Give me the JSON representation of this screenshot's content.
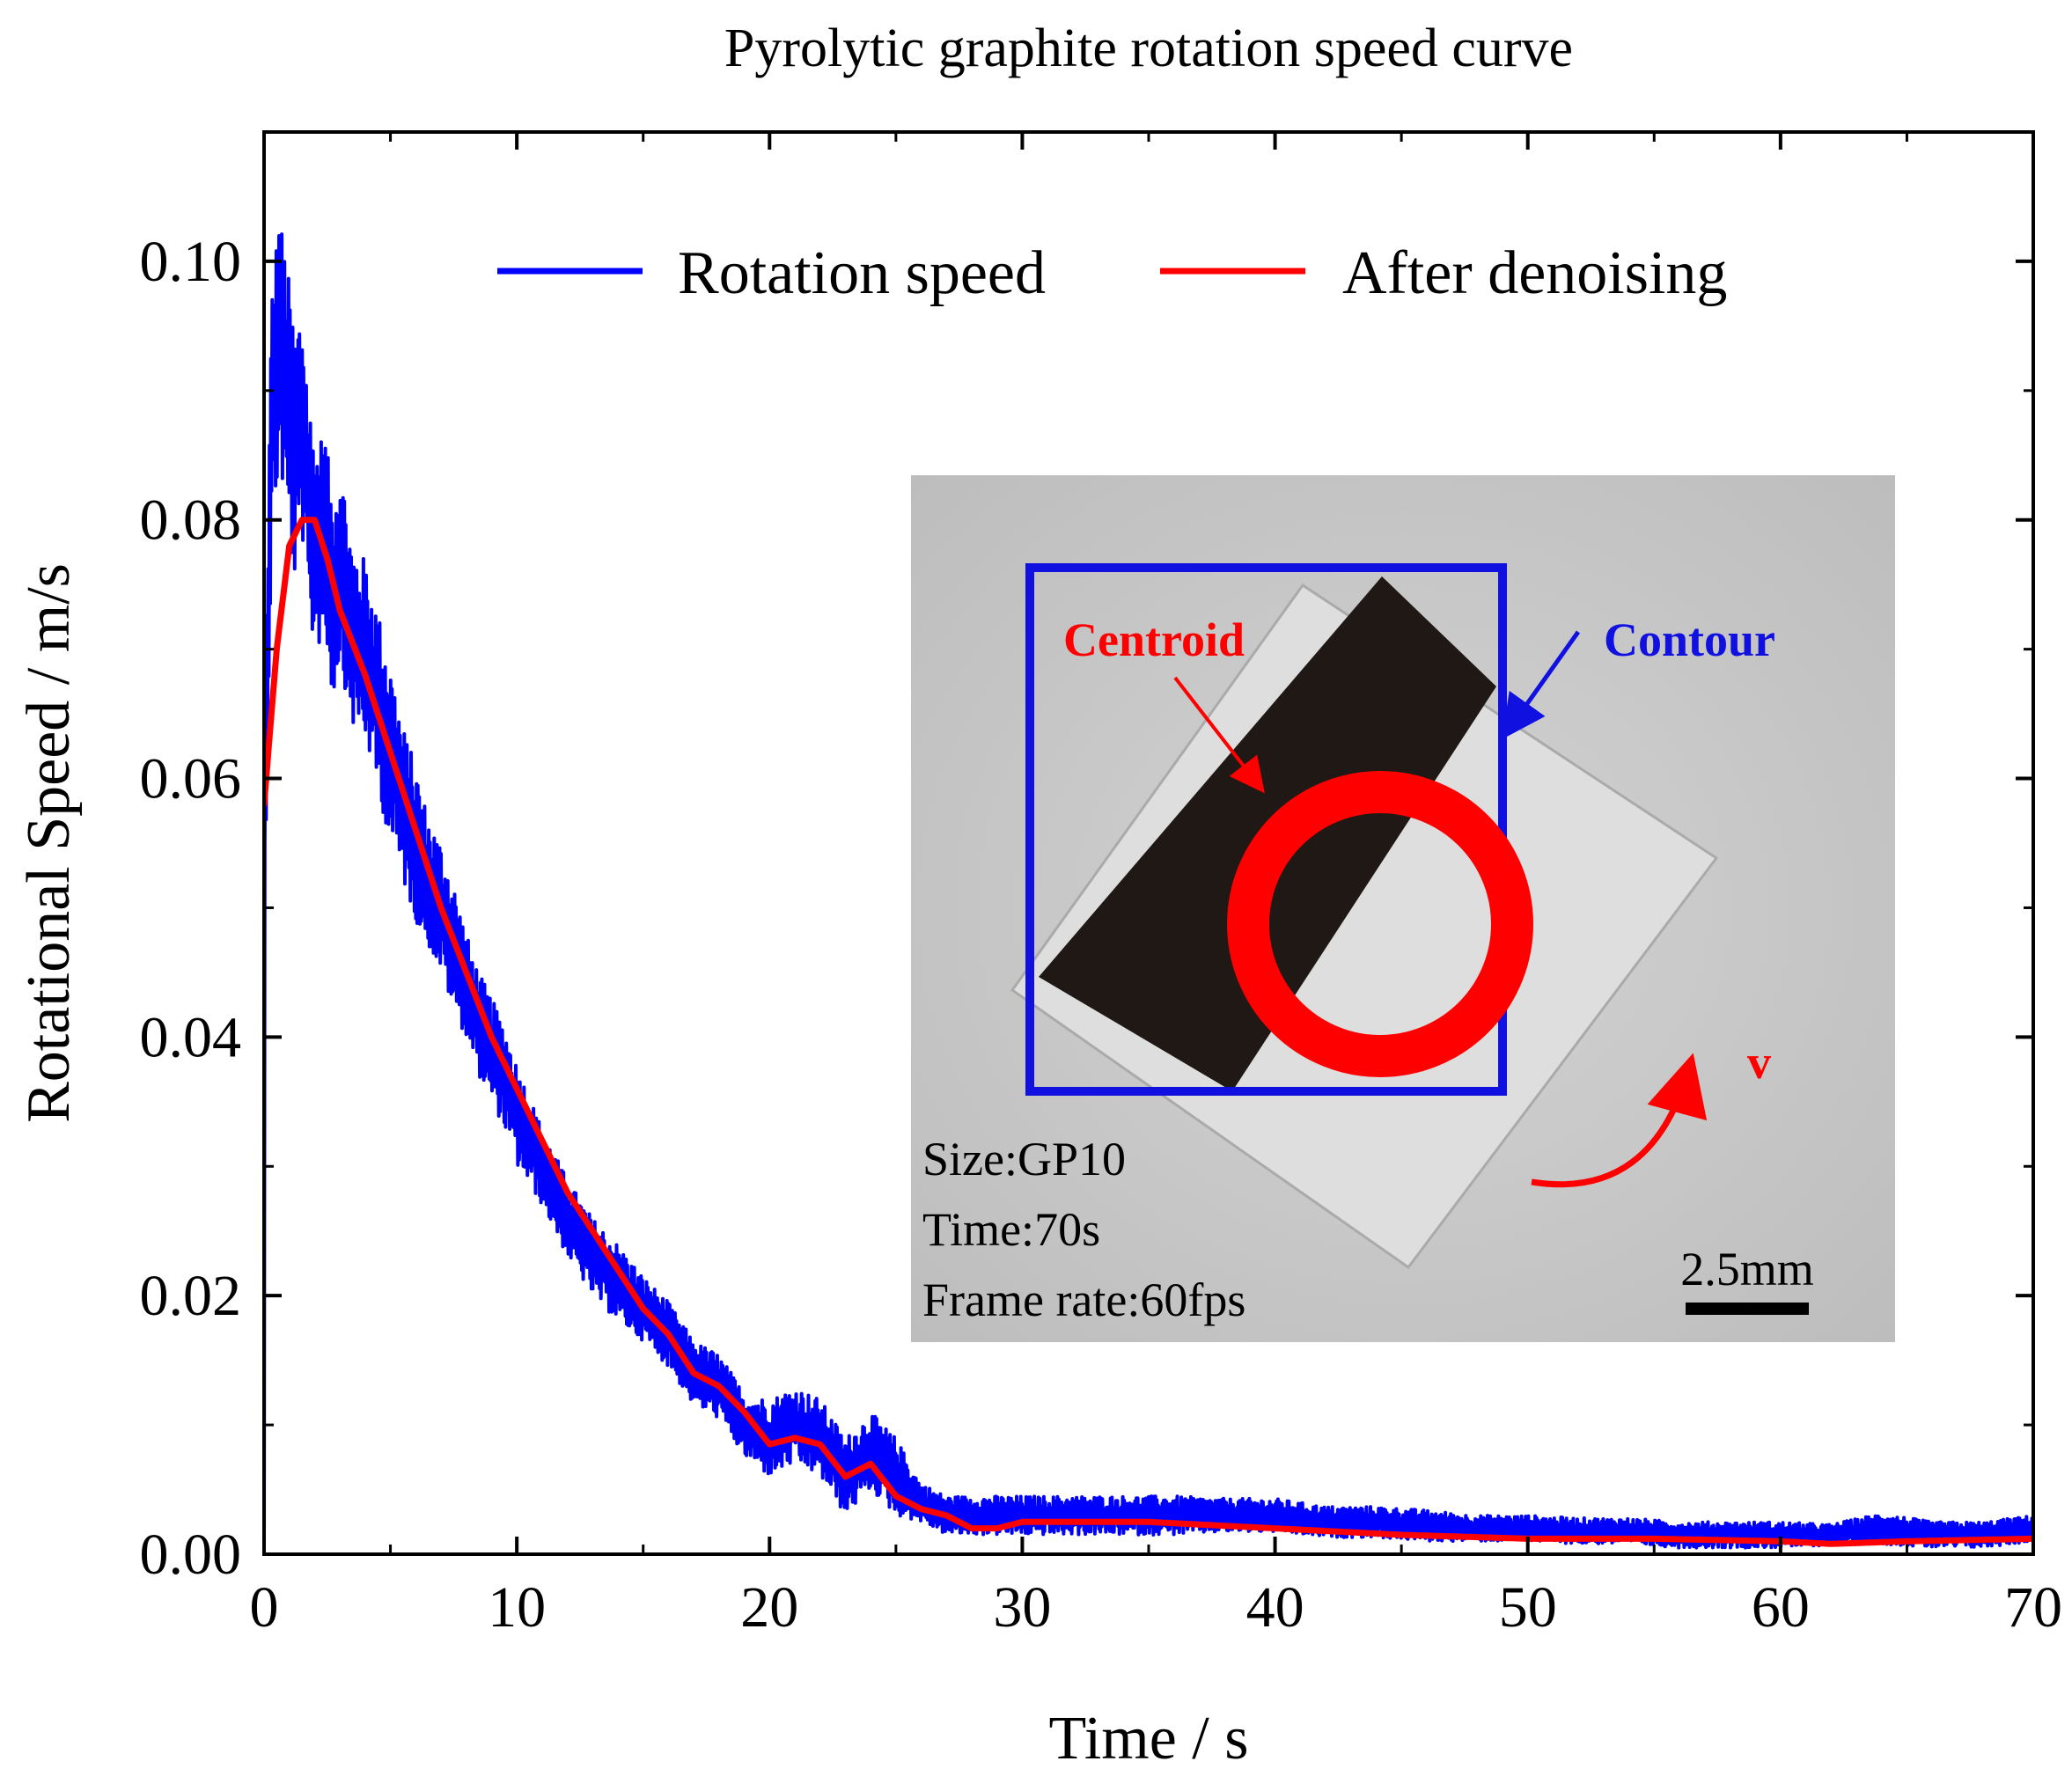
{
  "chart_data": {
    "type": "line",
    "title": "Pyrolytic graphite rotation speed curve",
    "xlabel": "Time / s",
    "ylabel": "Rotational Speed / m/s",
    "xlim": [
      0,
      70
    ],
    "ylim": [
      0,
      0.11
    ],
    "x_ticks": [
      0,
      10,
      20,
      30,
      40,
      50,
      60,
      70
    ],
    "x_tick_labels": [
      "0",
      "10",
      "20",
      "30",
      "40",
      "50",
      "60",
      "70"
    ],
    "y_ticks": [
      0.0,
      0.02,
      0.04,
      0.06,
      0.08,
      0.1
    ],
    "y_tick_labels": [
      "0.00",
      "0.02",
      "0.04",
      "0.06",
      "0.08",
      "0.10"
    ],
    "grid": false,
    "legend_position": "top-center",
    "series": [
      {
        "name": "Rotation speed",
        "color": "#0000ff",
        "noisy": true,
        "x": [
          0,
          0.3,
          0.6,
          0.9,
          1.2,
          1.5,
          1.8,
          2.1,
          2.4,
          2.7,
          3,
          3.5,
          4,
          4.5,
          5,
          5.5,
          6,
          6.5,
          7,
          7.5,
          8,
          8.5,
          9,
          9.5,
          10,
          11,
          12,
          13,
          14,
          15,
          16,
          17,
          18,
          19,
          20,
          21,
          22,
          23,
          24,
          25,
          26,
          27,
          28,
          29,
          30,
          32,
          34,
          36,
          38,
          40,
          42,
          44,
          46,
          48,
          50,
          52,
          54,
          56,
          58,
          60,
          62,
          64,
          66,
          68,
          70
        ],
        "values": [
          0.055,
          0.088,
          0.094,
          0.09,
          0.085,
          0.088,
          0.08,
          0.078,
          0.079,
          0.074,
          0.077,
          0.071,
          0.07,
          0.066,
          0.062,
          0.058,
          0.055,
          0.052,
          0.05,
          0.047,
          0.044,
          0.041,
          0.039,
          0.037,
          0.034,
          0.03,
          0.026,
          0.023,
          0.021,
          0.019,
          0.017,
          0.014,
          0.013,
          0.01,
          0.009,
          0.01,
          0.009,
          0.006,
          0.008,
          0.006,
          0.004,
          0.003,
          0.003,
          0.003,
          0.003,
          0.003,
          0.003,
          0.003,
          0.003,
          0.003,
          0.0025,
          0.0025,
          0.0022,
          0.002,
          0.002,
          0.0018,
          0.0018,
          0.0015,
          0.0015,
          0.0015,
          0.0015,
          0.002,
          0.0015,
          0.0015,
          0.002
        ],
        "noise_amp": [
          0.006,
          0.01,
          0.01,
          0.01,
          0.01,
          0.009,
          0.009,
          0.008,
          0.008,
          0.008,
          0.008,
          0.007,
          0.007,
          0.007,
          0.007,
          0.006,
          0.006,
          0.005,
          0.005,
          0.005,
          0.004,
          0.004,
          0.004,
          0.004,
          0.004,
          0.003,
          0.003,
          0.003,
          0.003,
          0.0025,
          0.0025,
          0.0025,
          0.0025,
          0.0025,
          0.003,
          0.003,
          0.003,
          0.003,
          0.003,
          0.003,
          0.0015,
          0.0015,
          0.0015,
          0.0015,
          0.0015,
          0.0015,
          0.0015,
          0.0015,
          0.0013,
          0.0013,
          0.0012,
          0.0012,
          0.0012,
          0.001,
          0.001,
          0.001,
          0.001,
          0.001,
          0.001,
          0.001,
          0.0008,
          0.0012,
          0.001,
          0.001,
          0.001
        ]
      },
      {
        "name": "After denoising",
        "color": "#ff0000",
        "noisy": false,
        "x": [
          0,
          0.5,
          1,
          1.5,
          2,
          2.5,
          3,
          4,
          5,
          6,
          7,
          8,
          9,
          10,
          11,
          12,
          13,
          14,
          15,
          16,
          17,
          18,
          19,
          20,
          21,
          22,
          23,
          24,
          25,
          26,
          27,
          28,
          29,
          30,
          35,
          40,
          45,
          50,
          55,
          60,
          62,
          65,
          70
        ],
        "values": [
          0.058,
          0.07,
          0.078,
          0.08,
          0.08,
          0.077,
          0.073,
          0.068,
          0.062,
          0.056,
          0.05,
          0.045,
          0.04,
          0.036,
          0.032,
          0.028,
          0.025,
          0.022,
          0.019,
          0.017,
          0.014,
          0.013,
          0.011,
          0.0085,
          0.009,
          0.0085,
          0.006,
          0.007,
          0.0045,
          0.0035,
          0.003,
          0.002,
          0.002,
          0.0025,
          0.0025,
          0.002,
          0.0015,
          0.0012,
          0.0012,
          0.001,
          0.0008,
          0.001,
          0.0012
        ]
      }
    ]
  },
  "inset": {
    "labels": {
      "centroid": "Centroid",
      "contour": "Contour",
      "velocity": "v",
      "size": "Size:GP10",
      "time": "Time:70s",
      "frame_rate": "Frame rate:60fps",
      "scale_bar": "2.5mm"
    },
    "colors": {
      "background": "#c9c9c9",
      "sample_dark": "#1f1814",
      "sample_light": "#dcdcdc",
      "contour": "#1010e0",
      "centroid": "#ff0000",
      "arrow": "#ff0000",
      "text": "#000000"
    }
  }
}
